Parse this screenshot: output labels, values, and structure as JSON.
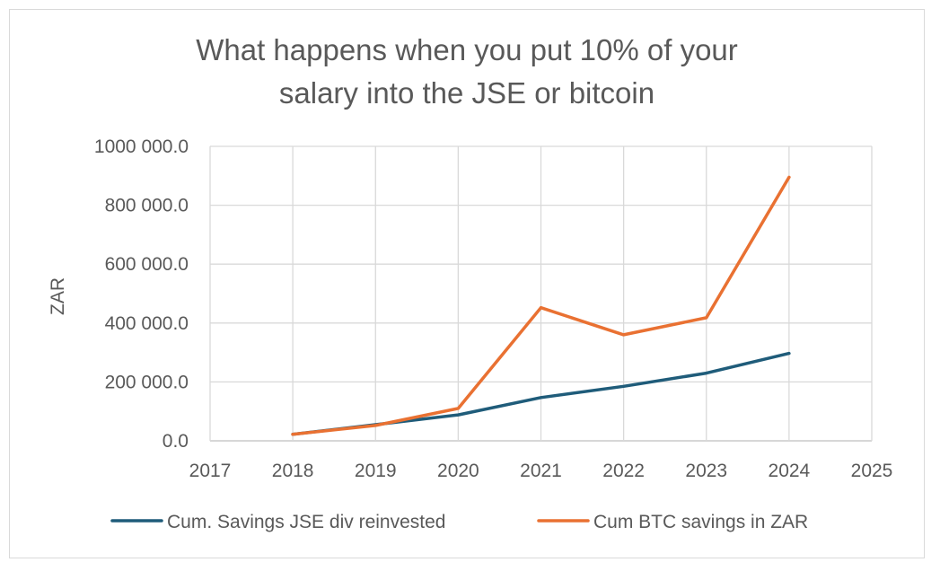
{
  "chart_data": {
    "type": "line",
    "title_lines": [
      "What happens when you put 10% of your",
      "salary into the JSE or bitcoin"
    ],
    "xlabel": "",
    "ylabel": "ZAR",
    "x": [
      2018,
      2019,
      2020,
      2021,
      2022,
      2023,
      2024
    ],
    "xlim": [
      2017,
      2025
    ],
    "x_ticks": [
      "2017",
      "2018",
      "2019",
      "2020",
      "2021",
      "2022",
      "2023",
      "2024",
      "2025"
    ],
    "ylim": [
      0,
      1000000
    ],
    "y_ticks": [
      0,
      200000,
      400000,
      600000,
      800000,
      1000000
    ],
    "y_tick_labels": [
      "0.0",
      "200 000.0",
      "400 000.0",
      "600 000.0",
      "800 000.0",
      "1000 000.0"
    ],
    "grid": true,
    "legend_position": "bottom",
    "series": [
      {
        "name": "Cum. Savings JSE div reinvested",
        "color": "#1f5c7a",
        "values": [
          22000,
          55000,
          88000,
          147000,
          185000,
          230000,
          297000
        ]
      },
      {
        "name": "Cum BTC savings in ZAR",
        "color": "#e97132",
        "values": [
          22000,
          52000,
          110000,
          452000,
          360000,
          418000,
          895000
        ]
      }
    ]
  }
}
